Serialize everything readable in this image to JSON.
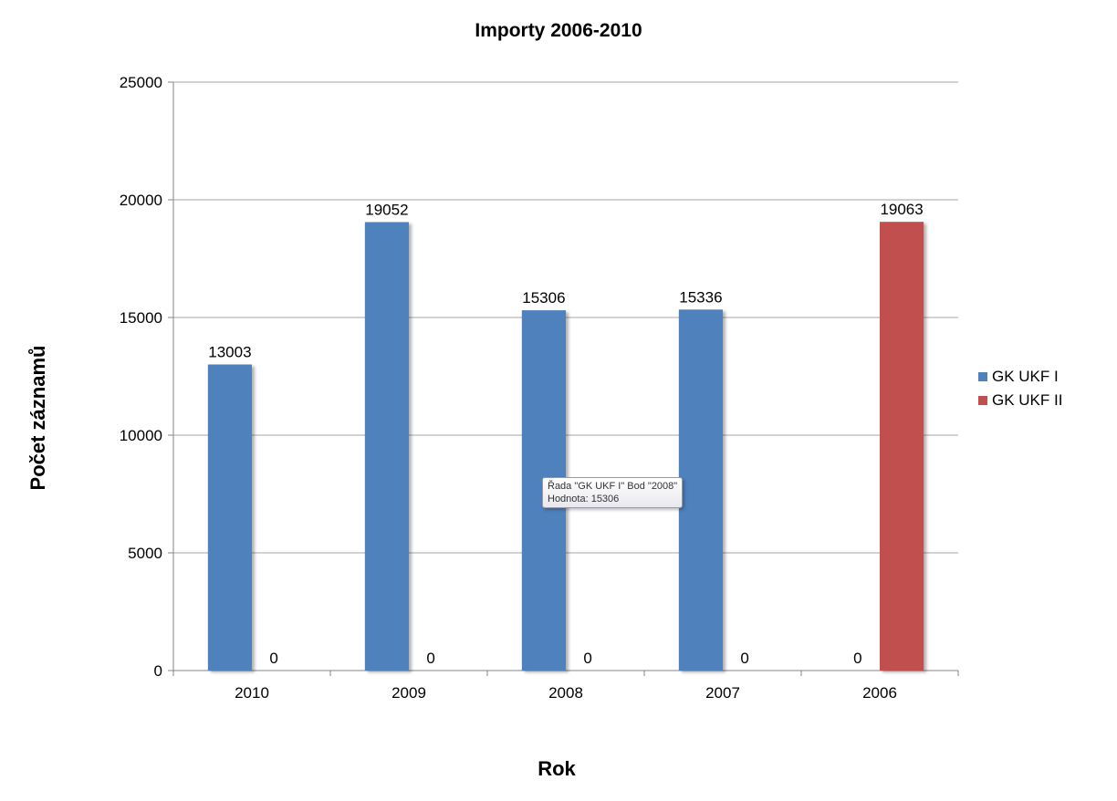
{
  "chart_data": {
    "type": "bar",
    "title": "Importy 2006-2010",
    "xlabel": "Rok",
    "ylabel": "Počet záznamů",
    "categories": [
      "2010",
      "2009",
      "2008",
      "2007",
      "2006"
    ],
    "series": [
      {
        "name": "GK UKF I",
        "color": "#4f81bd",
        "values": [
          13003,
          19052,
          15306,
          15336,
          0
        ]
      },
      {
        "name": "GK UKF II",
        "color": "#c0504d",
        "values": [
          0,
          0,
          0,
          0,
          19063
        ]
      }
    ],
    "ylim": [
      0,
      25000
    ],
    "yticks": [
      0,
      5000,
      10000,
      15000,
      20000,
      25000
    ],
    "grid": true,
    "legend_position": "right"
  },
  "tooltip": {
    "line1": "Řada \"GK UKF I\" Bod \"2008\"",
    "line2": "Hodnota: 15306"
  }
}
